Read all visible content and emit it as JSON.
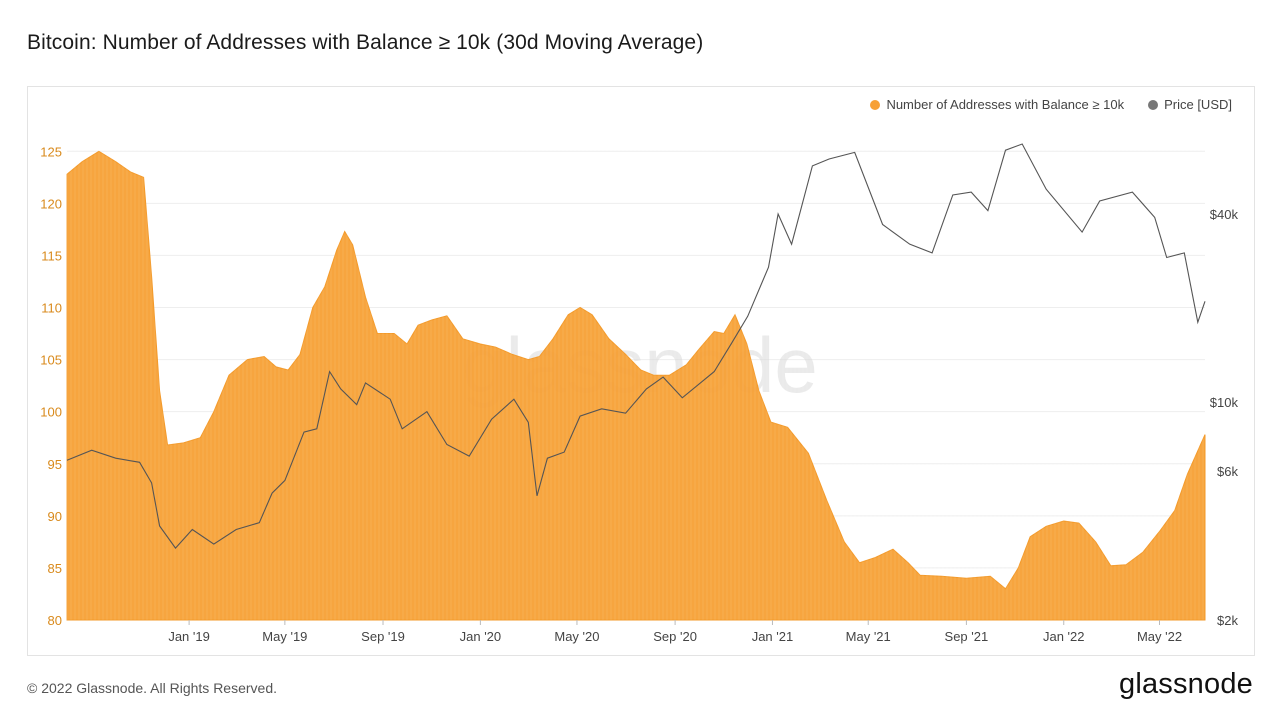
{
  "header": {
    "title": "Bitcoin: Number of Addresses with Balance ≥ 10k (30d Moving Average)"
  },
  "footer": {
    "copyright": "© 2022 Glassnode. All Rights Reserved.",
    "brand": "glassnode"
  },
  "watermark": "glassnode",
  "colors": {
    "series_fill": "#f7a035",
    "price_line": "#555555",
    "left_axis": "#d98a1c",
    "right_axis": "#444444",
    "grid": "#eeeeee"
  },
  "chart_data": {
    "type": "area",
    "title": "Bitcoin: Number of Addresses with Balance ≥ 10k (30d Moving Average)",
    "x_start": "2018-08-01",
    "x_end": "2022-06-27",
    "x_ticks": [
      {
        "label": "Jan '19",
        "date": "2019-01-01"
      },
      {
        "label": "May '19",
        "date": "2019-05-01"
      },
      {
        "label": "Sep '19",
        "date": "2019-09-01"
      },
      {
        "label": "Jan '20",
        "date": "2020-01-01"
      },
      {
        "label": "May '20",
        "date": "2020-05-01"
      },
      {
        "label": "Sep '20",
        "date": "2020-09-01"
      },
      {
        "label": "Jan '21",
        "date": "2021-01-01"
      },
      {
        "label": "May '21",
        "date": "2021-05-01"
      },
      {
        "label": "Sep '21",
        "date": "2021-09-01"
      },
      {
        "label": "Jan '22",
        "date": "2022-01-01"
      },
      {
        "label": "May '22",
        "date": "2022-05-01"
      }
    ],
    "y_left": {
      "label": "",
      "range": [
        80,
        128
      ],
      "ticks": [
        80,
        85,
        90,
        95,
        100,
        105,
        110,
        115,
        120,
        125
      ]
    },
    "y_right": {
      "label": "Price [USD]",
      "scale": "log",
      "range": [
        2000,
        80000
      ],
      "ticks": [
        {
          "label": "$2k",
          "value": 2000
        },
        {
          "label": "$6k",
          "value": 6000
        },
        {
          "label": "$10k",
          "value": 10000
        },
        {
          "label": "$40k",
          "value": 40000
        }
      ]
    },
    "legend": [
      "Number of Addresses with Balance ≥ 10k",
      "Price [USD]"
    ],
    "series": [
      {
        "name": "Number of Addresses with Balance ≥ 10k",
        "type": "area",
        "points": [
          [
            "2018-08-01",
            122.8
          ],
          [
            "2018-08-20",
            124.0
          ],
          [
            "2018-09-10",
            125.0
          ],
          [
            "2018-10-01",
            124.0
          ],
          [
            "2018-10-20",
            123.0
          ],
          [
            "2018-11-05",
            122.5
          ],
          [
            "2018-11-15",
            113.0
          ],
          [
            "2018-11-25",
            102.0
          ],
          [
            "2018-12-05",
            96.8
          ],
          [
            "2018-12-25",
            97.0
          ],
          [
            "2019-01-15",
            97.5
          ],
          [
            "2019-02-01",
            100.0
          ],
          [
            "2019-02-20",
            103.5
          ],
          [
            "2019-03-15",
            105.0
          ],
          [
            "2019-04-05",
            105.3
          ],
          [
            "2019-04-20",
            104.3
          ],
          [
            "2019-05-05",
            104.0
          ],
          [
            "2019-05-20",
            105.5
          ],
          [
            "2019-06-05",
            110.0
          ],
          [
            "2019-06-20",
            112.0
          ],
          [
            "2019-07-05",
            115.5
          ],
          [
            "2019-07-15",
            117.3
          ],
          [
            "2019-07-25",
            116.0
          ],
          [
            "2019-08-10",
            111.0
          ],
          [
            "2019-08-25",
            107.5
          ],
          [
            "2019-09-15",
            107.5
          ],
          [
            "2019-10-01",
            106.5
          ],
          [
            "2019-10-15",
            108.3
          ],
          [
            "2019-11-01",
            108.8
          ],
          [
            "2019-11-20",
            109.2
          ],
          [
            "2019-12-10",
            107.0
          ],
          [
            "2020-01-01",
            106.5
          ],
          [
            "2020-01-20",
            106.2
          ],
          [
            "2020-02-10",
            105.5
          ],
          [
            "2020-03-01",
            105.0
          ],
          [
            "2020-03-15",
            105.3
          ],
          [
            "2020-04-01",
            107.0
          ],
          [
            "2020-04-20",
            109.3
          ],
          [
            "2020-05-05",
            110.0
          ],
          [
            "2020-05-20",
            109.3
          ],
          [
            "2020-06-10",
            107.0
          ],
          [
            "2020-07-01",
            105.5
          ],
          [
            "2020-07-20",
            104.0
          ],
          [
            "2020-08-05",
            103.5
          ],
          [
            "2020-08-25",
            103.5
          ],
          [
            "2020-09-15",
            104.5
          ],
          [
            "2020-10-01",
            106.0
          ],
          [
            "2020-10-20",
            107.7
          ],
          [
            "2020-11-01",
            107.5
          ],
          [
            "2020-11-15",
            109.3
          ],
          [
            "2020-11-30",
            106.5
          ],
          [
            "2020-12-15",
            102.0
          ],
          [
            "2020-12-30",
            99.0
          ],
          [
            "2021-01-20",
            98.5
          ],
          [
            "2021-02-15",
            96.0
          ],
          [
            "2021-03-10",
            91.5
          ],
          [
            "2021-04-01",
            87.5
          ],
          [
            "2021-04-20",
            85.5
          ],
          [
            "2021-05-10",
            86.0
          ],
          [
            "2021-06-01",
            86.8
          ],
          [
            "2021-06-20",
            85.5
          ],
          [
            "2021-07-05",
            84.3
          ],
          [
            "2021-08-01",
            84.2
          ],
          [
            "2021-09-01",
            84.0
          ],
          [
            "2021-10-01",
            84.2
          ],
          [
            "2021-10-20",
            83.0
          ],
          [
            "2021-11-05",
            85.0
          ],
          [
            "2021-11-20",
            88.0
          ],
          [
            "2021-12-10",
            89.0
          ],
          [
            "2022-01-01",
            89.5
          ],
          [
            "2022-01-20",
            89.3
          ],
          [
            "2022-02-10",
            87.5
          ],
          [
            "2022-03-01",
            85.2
          ],
          [
            "2022-03-20",
            85.3
          ],
          [
            "2022-04-10",
            86.5
          ],
          [
            "2022-05-01",
            88.5
          ],
          [
            "2022-05-20",
            90.5
          ],
          [
            "2022-06-05",
            94.0
          ],
          [
            "2022-06-27",
            97.8
          ]
        ]
      },
      {
        "name": "Price [USD]",
        "type": "line",
        "axis": "right",
        "points": [
          [
            "2018-08-01",
            6500
          ],
          [
            "2018-09-01",
            7000
          ],
          [
            "2018-10-01",
            6600
          ],
          [
            "2018-10-31",
            6400
          ],
          [
            "2018-11-15",
            5500
          ],
          [
            "2018-11-25",
            4000
          ],
          [
            "2018-12-15",
            3400
          ],
          [
            "2019-01-05",
            3900
          ],
          [
            "2019-02-01",
            3500
          ],
          [
            "2019-03-01",
            3900
          ],
          [
            "2019-03-30",
            4100
          ],
          [
            "2019-04-15",
            5100
          ],
          [
            "2019-05-01",
            5600
          ],
          [
            "2019-05-25",
            8000
          ],
          [
            "2019-06-10",
            8200
          ],
          [
            "2019-06-26",
            12500
          ],
          [
            "2019-07-10",
            11000
          ],
          [
            "2019-07-30",
            9800
          ],
          [
            "2019-08-10",
            11500
          ],
          [
            "2019-09-10",
            10200
          ],
          [
            "2019-09-25",
            8200
          ],
          [
            "2019-10-26",
            9300
          ],
          [
            "2019-11-20",
            7300
          ],
          [
            "2019-12-18",
            6700
          ],
          [
            "2020-01-15",
            8800
          ],
          [
            "2020-02-12",
            10200
          ],
          [
            "2020-03-01",
            8600
          ],
          [
            "2020-03-12",
            5000
          ],
          [
            "2020-03-25",
            6600
          ],
          [
            "2020-04-15",
            6900
          ],
          [
            "2020-05-05",
            9000
          ],
          [
            "2020-06-01",
            9500
          ],
          [
            "2020-07-01",
            9200
          ],
          [
            "2020-07-27",
            11000
          ],
          [
            "2020-08-17",
            12000
          ],
          [
            "2020-09-10",
            10300
          ],
          [
            "2020-10-20",
            12500
          ],
          [
            "2020-11-10",
            15300
          ],
          [
            "2020-12-01",
            18800
          ],
          [
            "2020-12-27",
            27000
          ],
          [
            "2021-01-08",
            40000
          ],
          [
            "2021-01-25",
            32000
          ],
          [
            "2021-02-20",
            57000
          ],
          [
            "2021-03-13",
            60000
          ],
          [
            "2021-04-14",
            63000
          ],
          [
            "2021-05-19",
            37000
          ],
          [
            "2021-06-22",
            32000
          ],
          [
            "2021-07-20",
            30000
          ],
          [
            "2021-08-15",
            46000
          ],
          [
            "2021-09-07",
            47000
          ],
          [
            "2021-09-28",
            41000
          ],
          [
            "2021-10-20",
            64000
          ],
          [
            "2021-11-10",
            67000
          ],
          [
            "2021-12-10",
            48000
          ],
          [
            "2022-01-24",
            35000
          ],
          [
            "2022-02-15",
            44000
          ],
          [
            "2022-03-28",
            47000
          ],
          [
            "2022-04-25",
            39000
          ],
          [
            "2022-05-10",
            29000
          ],
          [
            "2022-06-01",
            30000
          ],
          [
            "2022-06-18",
            18000
          ],
          [
            "2022-06-27",
            21000
          ]
        ]
      }
    ]
  }
}
